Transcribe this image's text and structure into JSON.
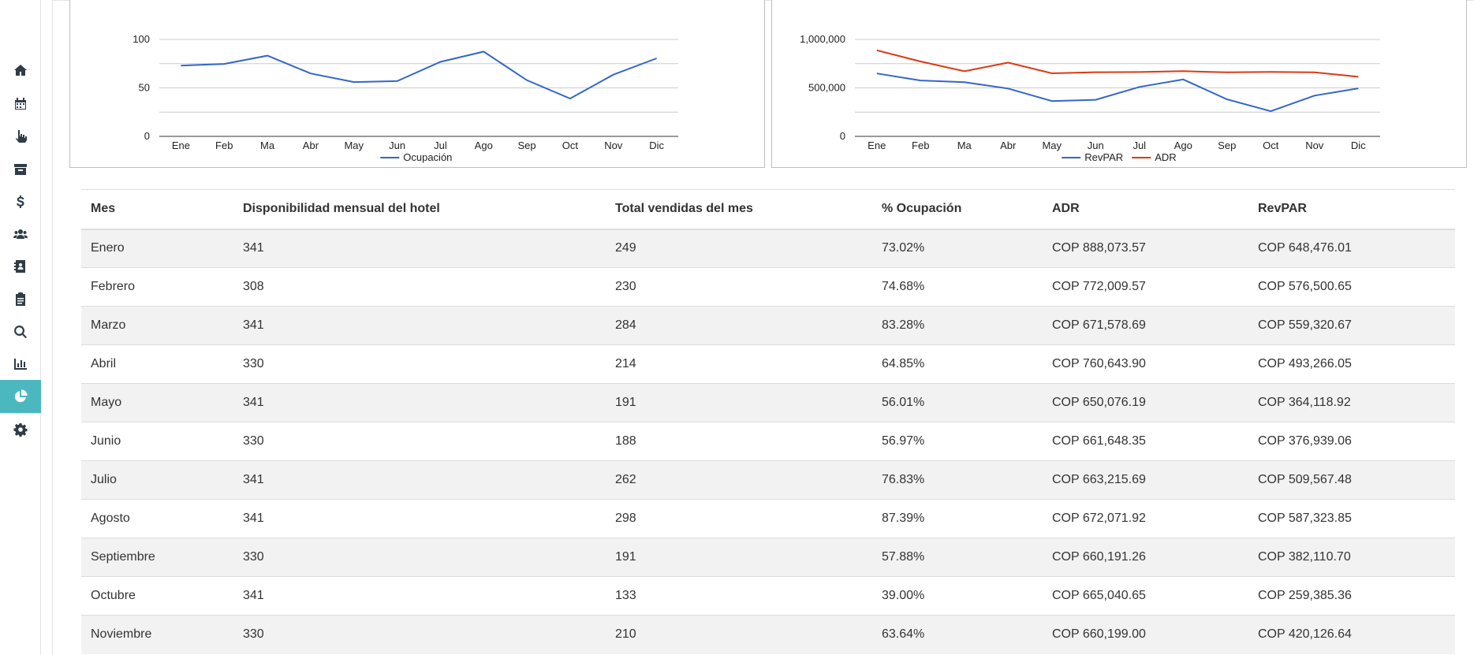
{
  "sidebar": {
    "items": [
      {
        "name": "home-icon",
        "label": "Inicio"
      },
      {
        "name": "calendar-icon",
        "label": "Calendario"
      },
      {
        "name": "pointer-icon",
        "label": "Reservas"
      },
      {
        "name": "archive-icon",
        "label": "Archivo"
      },
      {
        "name": "dollar-icon",
        "label": "Finanzas"
      },
      {
        "name": "users-icon",
        "label": "Clientes"
      },
      {
        "name": "contact-book-icon",
        "label": "Contactos"
      },
      {
        "name": "clipboard-icon",
        "label": "Tareas"
      },
      {
        "name": "search-icon",
        "label": "Buscar"
      },
      {
        "name": "bar-chart-icon",
        "label": "Reportes"
      },
      {
        "name": "pie-chart-icon",
        "label": "Estadísticas",
        "active": true
      },
      {
        "name": "gear-icon",
        "label": "Configuración"
      }
    ],
    "accent": "#4bb8c0"
  },
  "chart_data": [
    {
      "type": "line",
      "title": "",
      "categories": [
        "Ene",
        "Feb",
        "Ma",
        "Abr",
        "May",
        "Jun",
        "Jul",
        "Ago",
        "Sep",
        "Oct",
        "Nov",
        "Dic"
      ],
      "series": [
        {
          "name": "Ocupación",
          "color": "#3366cc",
          "values": [
            73.02,
            74.68,
            83.28,
            64.85,
            56.01,
            56.97,
            76.83,
            87.39,
            57.88,
            39.0,
            63.64,
            80.5
          ]
        }
      ],
      "yticks": [
        "0",
        "50",
        "100"
      ],
      "ylim": [
        0,
        100
      ],
      "grid": true,
      "legend": "bottom"
    },
    {
      "type": "line",
      "title": "",
      "categories": [
        "Ene",
        "Feb",
        "Ma",
        "Abr",
        "May",
        "Jun",
        "Jul",
        "Ago",
        "Sep",
        "Oct",
        "Nov",
        "Dic"
      ],
      "series": [
        {
          "name": "RevPAR",
          "color": "#3366cc",
          "values": [
            648476.01,
            576500.65,
            559320.67,
            493266.05,
            364118.92,
            376939.06,
            509567.48,
            587323.85,
            382110.7,
            259385.36,
            420126.64,
            495000
          ]
        },
        {
          "name": "ADR",
          "color": "#dc3912",
          "values": [
            888073.57,
            772009.57,
            671578.69,
            760643.9,
            650076.19,
            661648.35,
            663215.69,
            672071.92,
            660191.26,
            665040.65,
            660199.0,
            615000
          ]
        }
      ],
      "yticks": [
        "0",
        "500,000",
        "1,000,000"
      ],
      "ylim": [
        0,
        1000000
      ],
      "grid": true,
      "legend": "bottom"
    }
  ],
  "table": {
    "headers": [
      "Mes",
      "Disponibilidad mensual del hotel",
      "Total vendidas del mes",
      "% Ocupación",
      "ADR",
      "RevPAR"
    ],
    "rows": [
      [
        "Enero",
        "341",
        "249",
        "73.02%",
        "COP 888,073.57",
        "COP 648,476.01"
      ],
      [
        "Febrero",
        "308",
        "230",
        "74.68%",
        "COP 772,009.57",
        "COP 576,500.65"
      ],
      [
        "Marzo",
        "341",
        "284",
        "83.28%",
        "COP 671,578.69",
        "COP 559,320.67"
      ],
      [
        "Abril",
        "330",
        "214",
        "64.85%",
        "COP 760,643.90",
        "COP 493,266.05"
      ],
      [
        "Mayo",
        "341",
        "191",
        "56.01%",
        "COP 650,076.19",
        "COP 364,118.92"
      ],
      [
        "Junio",
        "330",
        "188",
        "56.97%",
        "COP 661,648.35",
        "COP 376,939.06"
      ],
      [
        "Julio",
        "341",
        "262",
        "76.83%",
        "COP 663,215.69",
        "COP 509,567.48"
      ],
      [
        "Agosto",
        "341",
        "298",
        "87.39%",
        "COP 672,071.92",
        "COP 587,323.85"
      ],
      [
        "Septiembre",
        "330",
        "191",
        "57.88%",
        "COP 660,191.26",
        "COP 382,110.70"
      ],
      [
        "Octubre",
        "341",
        "133",
        "39.00%",
        "COP 665,040.65",
        "COP 259,385.36"
      ],
      [
        "Noviembre",
        "330",
        "210",
        "63.64%",
        "COP 660,199.00",
        "COP 420,126.64"
      ]
    ]
  }
}
